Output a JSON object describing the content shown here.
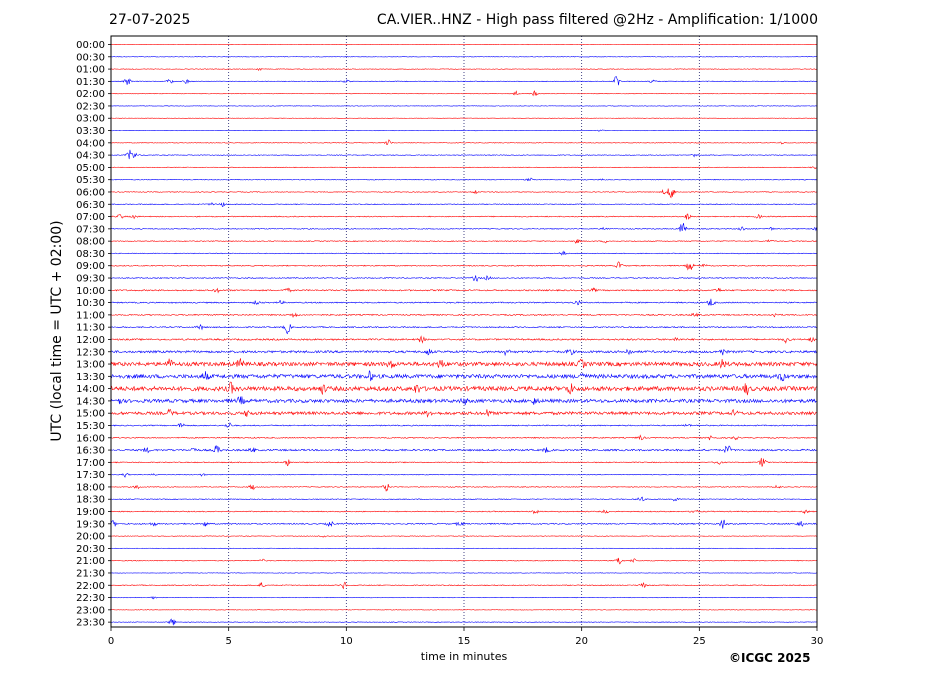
{
  "header": {
    "date": "27-07-2025",
    "title": "CA.VIER..HNZ - High pass filtered @2Hz - Amplification: 1/1000"
  },
  "footer": {
    "copyright": "©ICGC 2025"
  },
  "chart_data": {
    "type": "line",
    "xlabel": "time in minutes",
    "ylabel": "UTC (local time = UTC + 02:00)",
    "xlim": [
      0,
      30
    ],
    "x_ticks": [
      0,
      5,
      10,
      15,
      20,
      25,
      30
    ],
    "x_tick_labels": [
      "0",
      "5",
      "10",
      "15",
      "20",
      "25",
      "30"
    ],
    "grid": "vertical dotted at 5, 10, 15, 20, 25",
    "trace_colors": [
      "#ff0000",
      "#0000ff"
    ],
    "rows": [
      {
        "label": "00:00",
        "noise": 0.4,
        "events": []
      },
      {
        "label": "00:30",
        "noise": 0.4,
        "events": []
      },
      {
        "label": "01:00",
        "noise": 0.5,
        "events": [
          {
            "t": 6.3,
            "a": 1.5
          }
        ]
      },
      {
        "label": "01:30",
        "noise": 0.6,
        "events": [
          {
            "t": 0.7,
            "a": 4
          },
          {
            "t": 2.5,
            "a": 2.5
          },
          {
            "t": 3.2,
            "a": 2
          },
          {
            "t": 10.0,
            "a": 1.5
          },
          {
            "t": 21.5,
            "a": 7
          },
          {
            "t": 23.0,
            "a": 2.5
          }
        ]
      },
      {
        "label": "02:00",
        "noise": 0.4,
        "events": [
          {
            "t": 17.2,
            "a": 2.5
          },
          {
            "t": 18.0,
            "a": 2.5
          }
        ]
      },
      {
        "label": "02:30",
        "noise": 0.4,
        "events": []
      },
      {
        "label": "03:00",
        "noise": 0.4,
        "events": []
      },
      {
        "label": "03:30",
        "noise": 0.4,
        "events": [
          {
            "t": 20.8,
            "a": 1
          }
        ]
      },
      {
        "label": "04:00",
        "noise": 0.5,
        "events": [
          {
            "t": 11.8,
            "a": 3
          },
          {
            "t": 28.5,
            "a": 1
          }
        ]
      },
      {
        "label": "04:30",
        "noise": 0.6,
        "events": [
          {
            "t": 0.8,
            "a": 5
          },
          {
            "t": 1.0,
            "a": 2.5
          },
          {
            "t": 24.8,
            "a": 2
          }
        ]
      },
      {
        "label": "05:00",
        "noise": 0.5,
        "events": [
          {
            "t": 29.9,
            "a": 1.5
          }
        ]
      },
      {
        "label": "05:30",
        "noise": 0.6,
        "events": [
          {
            "t": 17.8,
            "a": 1.5
          },
          {
            "t": 20.8,
            "a": 1.5
          }
        ]
      },
      {
        "label": "06:00",
        "noise": 0.6,
        "events": [
          {
            "t": 15.5,
            "a": 1.5
          },
          {
            "t": 23.5,
            "a": 2
          },
          {
            "t": 23.8,
            "a": 8
          }
        ]
      },
      {
        "label": "06:30",
        "noise": 0.7,
        "events": [
          {
            "t": 4.7,
            "a": 2.5
          },
          {
            "t": 4.3,
            "a": 1.5
          }
        ]
      },
      {
        "label": "07:00",
        "noise": 0.8,
        "events": [
          {
            "t": 0.4,
            "a": 2.5
          },
          {
            "t": 1.0,
            "a": 1.5
          },
          {
            "t": 24.5,
            "a": 3
          },
          {
            "t": 27.5,
            "a": 2
          }
        ]
      },
      {
        "label": "07:30",
        "noise": 0.7,
        "events": [
          {
            "t": 21.0,
            "a": 2
          },
          {
            "t": 24.3,
            "a": 7
          },
          {
            "t": 26.8,
            "a": 2.5
          },
          {
            "t": 28.0,
            "a": 2
          },
          {
            "t": 30.0,
            "a": 2
          }
        ]
      },
      {
        "label": "08:00",
        "noise": 0.7,
        "events": [
          {
            "t": 19.8,
            "a": 2
          },
          {
            "t": 21.0,
            "a": 1.5
          },
          {
            "t": 28.0,
            "a": 1.5
          }
        ]
      },
      {
        "label": "08:30",
        "noise": 0.6,
        "events": [
          {
            "t": 19.2,
            "a": 2.5
          }
        ]
      },
      {
        "label": "09:00",
        "noise": 0.8,
        "events": [
          {
            "t": 21.6,
            "a": 4
          },
          {
            "t": 24.6,
            "a": 6
          },
          {
            "t": 25.2,
            "a": 1.5
          }
        ]
      },
      {
        "label": "09:30",
        "noise": 0.8,
        "events": [
          {
            "t": 15.5,
            "a": 3.5
          },
          {
            "t": 16.0,
            "a": 2
          }
        ]
      },
      {
        "label": "10:00",
        "noise": 1.1,
        "events": [
          {
            "t": 4.5,
            "a": 2
          },
          {
            "t": 7.5,
            "a": 2
          },
          {
            "t": 20.5,
            "a": 1.5
          },
          {
            "t": 25.8,
            "a": 2
          }
        ]
      },
      {
        "label": "10:30",
        "noise": 1.0,
        "events": [
          {
            "t": 6.2,
            "a": 2
          },
          {
            "t": 7.2,
            "a": 1.5
          },
          {
            "t": 19.8,
            "a": 2.5
          },
          {
            "t": 25.5,
            "a": 4.5
          }
        ]
      },
      {
        "label": "11:00",
        "noise": 1.0,
        "events": [
          {
            "t": 7.8,
            "a": 3
          },
          {
            "t": 24.8,
            "a": 2
          },
          {
            "t": 28.2,
            "a": 2
          }
        ]
      },
      {
        "label": "11:30",
        "noise": 1.0,
        "events": [
          {
            "t": 3.8,
            "a": 2.5
          },
          {
            "t": 7.5,
            "a": 6
          }
        ]
      },
      {
        "label": "12:00",
        "noise": 1.3,
        "events": [
          {
            "t": 13.2,
            "a": 3
          },
          {
            "t": 24.0,
            "a": 2
          },
          {
            "t": 28.7,
            "a": 3
          },
          {
            "t": 29.8,
            "a": 2
          }
        ]
      },
      {
        "label": "12:30",
        "noise": 1.8,
        "events": [
          {
            "t": 13.5,
            "a": 3
          },
          {
            "t": 16.8,
            "a": 3
          },
          {
            "t": 19.5,
            "a": 3
          },
          {
            "t": 22.0,
            "a": 3
          },
          {
            "t": 26.0,
            "a": 3
          }
        ]
      },
      {
        "label": "13:00",
        "noise": 3.2,
        "events": [
          {
            "t": 2.5,
            "a": 4
          },
          {
            "t": 5.5,
            "a": 5
          },
          {
            "t": 11.9,
            "a": 4
          },
          {
            "t": 14.0,
            "a": 4
          },
          {
            "t": 20.0,
            "a": 4
          },
          {
            "t": 26.0,
            "a": 4
          }
        ]
      },
      {
        "label": "13:30",
        "noise": 3.2,
        "events": [
          {
            "t": 4.0,
            "a": 4
          },
          {
            "t": 11.0,
            "a": 4
          },
          {
            "t": 20.0,
            "a": 4
          },
          {
            "t": 28.5,
            "a": 4
          }
        ]
      },
      {
        "label": "14:00",
        "noise": 3.6,
        "events": [
          {
            "t": 5.1,
            "a": 5
          },
          {
            "t": 9.0,
            "a": 4
          },
          {
            "t": 13.0,
            "a": 4
          },
          {
            "t": 19.5,
            "a": 5
          },
          {
            "t": 27.0,
            "a": 5
          }
        ]
      },
      {
        "label": "14:30",
        "noise": 2.8,
        "events": [
          {
            "t": 0.3,
            "a": 4
          },
          {
            "t": 5.5,
            "a": 4
          },
          {
            "t": 15.0,
            "a": 3
          },
          {
            "t": 18.0,
            "a": 3
          }
        ]
      },
      {
        "label": "15:00",
        "noise": 2.4,
        "events": [
          {
            "t": 2.5,
            "a": 3
          },
          {
            "t": 5.8,
            "a": 3
          },
          {
            "t": 13.5,
            "a": 3
          },
          {
            "t": 16.0,
            "a": 3
          },
          {
            "t": 26.5,
            "a": 3
          }
        ]
      },
      {
        "label": "15:30",
        "noise": 0.9,
        "events": [
          {
            "t": 3.0,
            "a": 3
          },
          {
            "t": 5.0,
            "a": 3
          },
          {
            "t": 24.5,
            "a": 1.5
          }
        ]
      },
      {
        "label": "16:00",
        "noise": 0.9,
        "events": [
          {
            "t": 22.5,
            "a": 2.5
          },
          {
            "t": 25.5,
            "a": 2.5
          },
          {
            "t": 26.5,
            "a": 2
          }
        ]
      },
      {
        "label": "16:30",
        "noise": 1.4,
        "events": [
          {
            "t": 1.5,
            "a": 2.5
          },
          {
            "t": 3.5,
            "a": 2.5
          },
          {
            "t": 4.5,
            "a": 5
          },
          {
            "t": 6.0,
            "a": 2.5
          },
          {
            "t": 18.5,
            "a": 2.5
          },
          {
            "t": 26.2,
            "a": 5
          }
        ]
      },
      {
        "label": "17:00",
        "noise": 0.8,
        "events": [
          {
            "t": 7.5,
            "a": 3
          },
          {
            "t": 25.8,
            "a": 3
          },
          {
            "t": 27.7,
            "a": 6
          }
        ]
      },
      {
        "label": "17:30",
        "noise": 0.6,
        "events": [
          {
            "t": 0.6,
            "a": 2.5
          },
          {
            "t": 1.8,
            "a": 1.5
          },
          {
            "t": 3.9,
            "a": 1.5
          }
        ]
      },
      {
        "label": "18:00",
        "noise": 0.6,
        "events": [
          {
            "t": 1.1,
            "a": 2
          },
          {
            "t": 6.0,
            "a": 3
          },
          {
            "t": 11.7,
            "a": 4.5
          },
          {
            "t": 28.3,
            "a": 2
          }
        ]
      },
      {
        "label": "18:30",
        "noise": 0.7,
        "events": [
          {
            "t": 22.5,
            "a": 3
          },
          {
            "t": 24.0,
            "a": 2
          }
        ]
      },
      {
        "label": "19:00",
        "noise": 0.8,
        "events": [
          {
            "t": 18.0,
            "a": 2.5
          },
          {
            "t": 21.0,
            "a": 1.5
          },
          {
            "t": 24.8,
            "a": 2.5
          },
          {
            "t": 29.5,
            "a": 2
          }
        ]
      },
      {
        "label": "19:30",
        "noise": 1.0,
        "events": [
          {
            "t": 0.1,
            "a": 3
          },
          {
            "t": 1.8,
            "a": 2
          },
          {
            "t": 4.0,
            "a": 2.5
          },
          {
            "t": 9.3,
            "a": 3
          },
          {
            "t": 14.8,
            "a": 2
          },
          {
            "t": 26.0,
            "a": 5
          },
          {
            "t": 29.3,
            "a": 3
          }
        ]
      },
      {
        "label": "20:00",
        "noise": 0.5,
        "events": [
          {
            "t": 9.0,
            "a": 2
          }
        ]
      },
      {
        "label": "20:30",
        "noise": 0.4,
        "events": []
      },
      {
        "label": "21:00",
        "noise": 0.6,
        "events": [
          {
            "t": 6.4,
            "a": 2
          },
          {
            "t": 21.6,
            "a": 4.5
          },
          {
            "t": 22.2,
            "a": 2
          }
        ]
      },
      {
        "label": "21:30",
        "noise": 0.4,
        "events": []
      },
      {
        "label": "22:00",
        "noise": 0.7,
        "events": [
          {
            "t": 6.4,
            "a": 2.5
          },
          {
            "t": 9.9,
            "a": 3.5
          },
          {
            "t": 22.6,
            "a": 2.5
          }
        ]
      },
      {
        "label": "22:30",
        "noise": 0.5,
        "events": [
          {
            "t": 1.8,
            "a": 1
          }
        ]
      },
      {
        "label": "23:00",
        "noise": 0.4,
        "events": []
      },
      {
        "label": "23:30",
        "noise": 0.5,
        "events": [
          {
            "t": 2.6,
            "a": 4
          }
        ]
      }
    ]
  }
}
